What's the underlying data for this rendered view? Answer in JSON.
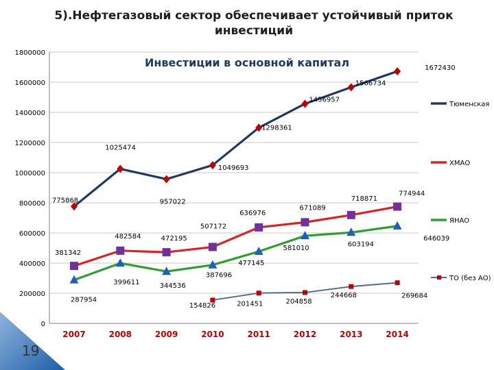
{
  "slide": {
    "title": "5).Нефтегазовый сектор обеспечивает устойчивый приток инвестиций",
    "number": "19"
  },
  "chart_data": {
    "type": "line",
    "title": "Инвестиции в основной капитал",
    "xlabel": "",
    "ylabel": "",
    "categories": [
      "2007",
      "2008",
      "2009",
      "2010",
      "2011",
      "2012",
      "2013",
      "2014"
    ],
    "ylim": [
      0,
      1800000
    ],
    "yticks": [
      "0",
      "200000",
      "400000",
      "600000",
      "800000",
      "1000000",
      "1200000",
      "1400000",
      "1600000",
      "1800000"
    ],
    "grid": "horizontal",
    "legend_position": "right",
    "series": [
      {
        "name": "Тюменская",
        "color": "#1f3864",
        "marker": "diamond",
        "marker_color": "#c00000",
        "values": [
          775868,
          1025474,
          957022,
          1049693,
          1298361,
          1456957,
          1566734,
          1672430
        ],
        "labels": [
          "775868",
          "1025474",
          "957022",
          "1049693",
          "1298361",
          "1456957",
          "1566734",
          "1672430"
        ]
      },
      {
        "name": "ХМАО",
        "color": "#e02020",
        "marker": "square",
        "marker_color": "#7030a0",
        "values": [
          381342,
          482584,
          472195,
          507172,
          636976,
          671089,
          718871,
          774944
        ],
        "labels": [
          "381342",
          "482584",
          "472195",
          "507172",
          "636976",
          "671089",
          "718871",
          "774944"
        ]
      },
      {
        "name": "ЯНАО",
        "color": "#2ca02c",
        "marker": "triangle",
        "marker_color": "#1f5fbf",
        "values": [
          287954,
          399611,
          344536,
          387696,
          477145,
          581010,
          603194,
          646039
        ],
        "labels": [
          "287954",
          "399611",
          "344536",
          "387696",
          "477145",
          "581010",
          "603194",
          "646039"
        ]
      },
      {
        "name": "ТО (без АО)",
        "color": "#4f6d8a",
        "marker": "square",
        "marker_color": "#c00000",
        "values": [
          null,
          null,
          null,
          154826,
          201451,
          204858,
          244668,
          269684
        ],
        "labels": [
          "",
          "",
          "",
          "154826",
          "201451",
          "204858",
          "244668",
          "269684"
        ]
      }
    ]
  }
}
